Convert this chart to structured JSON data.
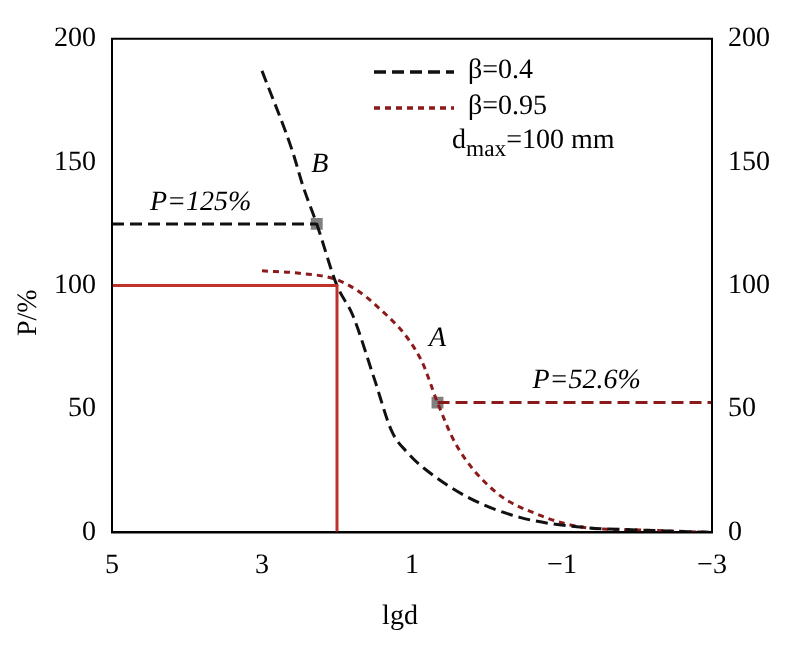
{
  "chart_data": {
    "type": "line",
    "xlabel": "lgd",
    "ylabel": "P/%",
    "xlim": [
      5,
      -3
    ],
    "xticks": [
      5,
      3,
      1,
      {
        "value": -1,
        "label": "−1"
      },
      {
        "value": -3,
        "label": "−3"
      }
    ],
    "ylim": [
      0,
      200
    ],
    "yticks": [
      0,
      50,
      100,
      150,
      200
    ],
    "y2lim": [
      0,
      200
    ],
    "y2ticks": [
      0,
      50,
      100,
      150,
      200
    ],
    "grid": false,
    "legend": "top right",
    "marker": "none",
    "series": [
      {
        "color": "#c0302c",
        "line_style": "solid",
        "x": [
          5,
          2,
          2
        ],
        "values": [
          100,
          100,
          0
        ]
      },
      {
        "name": "β=0.4",
        "color": "#111111",
        "line_style": "dashed",
        "x": [
          3,
          2.6,
          2.45,
          2.27,
          2,
          1.79,
          1.5,
          1.27,
          1.05,
          0.84,
          0.24,
          -0.45,
          -1.3,
          -2,
          -3
        ],
        "values": [
          187,
          155,
          140,
          125,
          100,
          88,
          62,
          41,
          32,
          26,
          14,
          6,
          2,
          1,
          0
        ]
      },
      {
        "name": "β=0.95",
        "color": "#8b1a1a",
        "line_style": "dotted",
        "x": [
          3,
          2.5,
          1.97,
          1.48,
          0.88,
          0.66,
          0.42,
          -0.09,
          -0.7,
          -1.3,
          -2,
          -3
        ],
        "values": [
          106,
          105,
          102,
          92,
          70,
          52.6,
          36,
          17,
          7,
          2,
          1,
          0
        ]
      },
      {
        "color": "#111111",
        "line_style": "dashed",
        "x": [
          5,
          2.27
        ],
        "values": [
          125,
          125
        ]
      },
      {
        "color": "#8b1a1a",
        "line_style": "dashed",
        "x": [
          0.66,
          -3
        ],
        "values": [
          52.6,
          52.6
        ]
      },
      {
        "type": "scatter",
        "color": "#808080",
        "marker": "square",
        "x": [
          2.27,
          0.66
        ],
        "values": [
          125,
          52.6
        ]
      }
    ],
    "annotations": [
      "d$_{max}$=100 mm",
      {
        "text": "P=125%",
        "x": 4.6,
        "y": 125
      },
      {
        "text": "P=52.6%",
        "x": -0.5,
        "y": 52.6
      },
      {
        "text": "B",
        "x": 2.45,
        "y": 140
      },
      {
        "text": "A",
        "x": 0.88,
        "y": 70
      }
    ]
  }
}
